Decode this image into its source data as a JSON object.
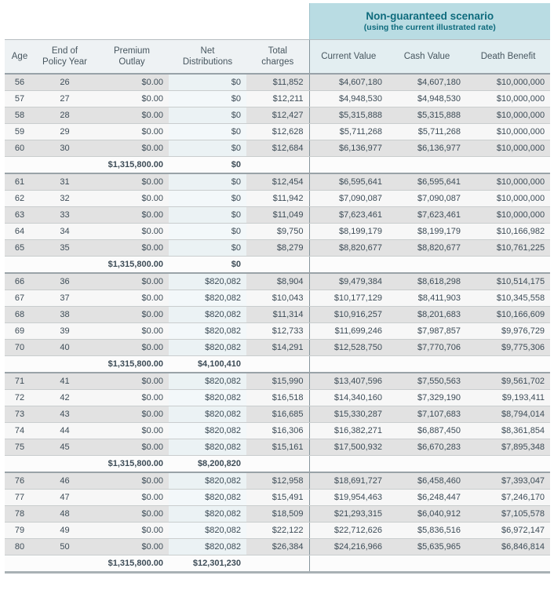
{
  "scenario_header": {
    "title": "Non-guaranteed scenario",
    "subtitle": "(using the current illustrated rate)"
  },
  "colors": {
    "scenario_bg": "#b9dce3",
    "scenario_text": "#0e6b7d",
    "row_stripe": "#e2e2e2",
    "net_distributions_tint": "#ebf2f4",
    "section_divider": "#85959c"
  },
  "table": {
    "columns": [
      "Age",
      "End of\nPolicy Year",
      "Premium\nOutlay",
      "Net\nDistributions",
      "Total\ncharges",
      "Current Value",
      "Cash Value",
      "Death Benefit"
    ],
    "blocks": [
      {
        "rows": [
          [
            "56",
            "26",
            "$0.00",
            "$0",
            "$11,852",
            "$4,607,180",
            "$4,607,180",
            "$10,000,000"
          ],
          [
            "57",
            "27",
            "$0.00",
            "$0",
            "$12,211",
            "$4,948,530",
            "$4,948,530",
            "$10,000,000"
          ],
          [
            "58",
            "28",
            "$0.00",
            "$0",
            "$12,427",
            "$5,315,888",
            "$5,315,888",
            "$10,000,000"
          ],
          [
            "59",
            "29",
            "$0.00",
            "$0",
            "$12,628",
            "$5,711,268",
            "$5,711,268",
            "$10,000,000"
          ],
          [
            "60",
            "30",
            "$0.00",
            "$0",
            "$12,684",
            "$6,136,977",
            "$6,136,977",
            "$10,000,000"
          ]
        ],
        "subtotal": {
          "premium_outlay": "$1,315,800.00",
          "net_distributions": "$0"
        }
      },
      {
        "rows": [
          [
            "61",
            "31",
            "$0.00",
            "$0",
            "$12,454",
            "$6,595,641",
            "$6,595,641",
            "$10,000,000"
          ],
          [
            "62",
            "32",
            "$0.00",
            "$0",
            "$11,942",
            "$7,090,087",
            "$7,090,087",
            "$10,000,000"
          ],
          [
            "63",
            "33",
            "$0.00",
            "$0",
            "$11,049",
            "$7,623,461",
            "$7,623,461",
            "$10,000,000"
          ],
          [
            "64",
            "34",
            "$0.00",
            "$0",
            "$9,750",
            "$8,199,179",
            "$8,199,179",
            "$10,166,982"
          ],
          [
            "65",
            "35",
            "$0.00",
            "$0",
            "$8,279",
            "$8,820,677",
            "$8,820,677",
            "$10,761,225"
          ]
        ],
        "subtotal": {
          "premium_outlay": "$1,315,800.00",
          "net_distributions": "$0"
        }
      },
      {
        "rows": [
          [
            "66",
            "36",
            "$0.00",
            "$820,082",
            "$8,904",
            "$9,479,384",
            "$8,618,298",
            "$10,514,175"
          ],
          [
            "67",
            "37",
            "$0.00",
            "$820,082",
            "$10,043",
            "$10,177,129",
            "$8,411,903",
            "$10,345,558"
          ],
          [
            "68",
            "38",
            "$0.00",
            "$820,082",
            "$11,314",
            "$10,916,257",
            "$8,201,683",
            "$10,166,609"
          ],
          [
            "69",
            "39",
            "$0.00",
            "$820,082",
            "$12,733",
            "$11,699,246",
            "$7,987,857",
            "$9,976,729"
          ],
          [
            "70",
            "40",
            "$0.00",
            "$820,082",
            "$14,291",
            "$12,528,750",
            "$7,770,706",
            "$9,775,306"
          ]
        ],
        "subtotal": {
          "premium_outlay": "$1,315,800.00",
          "net_distributions": "$4,100,410"
        }
      },
      {
        "rows": [
          [
            "71",
            "41",
            "$0.00",
            "$820,082",
            "$15,990",
            "$13,407,596",
            "$7,550,563",
            "$9,561,702"
          ],
          [
            "72",
            "42",
            "$0.00",
            "$820,082",
            "$16,518",
            "$14,340,160",
            "$7,329,190",
            "$9,193,411"
          ],
          [
            "73",
            "43",
            "$0.00",
            "$820,082",
            "$16,685",
            "$15,330,287",
            "$7,107,683",
            "$8,794,014"
          ],
          [
            "74",
            "44",
            "$0.00",
            "$820,082",
            "$16,306",
            "$16,382,271",
            "$6,887,450",
            "$8,361,854"
          ],
          [
            "75",
            "45",
            "$0.00",
            "$820,082",
            "$15,161",
            "$17,500,932",
            "$6,670,283",
            "$7,895,348"
          ]
        ],
        "subtotal": {
          "premium_outlay": "$1,315,800.00",
          "net_distributions": "$8,200,820"
        }
      },
      {
        "rows": [
          [
            "76",
            "46",
            "$0.00",
            "$820,082",
            "$12,958",
            "$18,691,727",
            "$6,458,460",
            "$7,393,047"
          ],
          [
            "77",
            "47",
            "$0.00",
            "$820,082",
            "$15,491",
            "$19,954,463",
            "$6,248,447",
            "$7,246,170"
          ],
          [
            "78",
            "48",
            "$0.00",
            "$820,082",
            "$18,509",
            "$21,293,315",
            "$6,040,912",
            "$7,105,578"
          ],
          [
            "79",
            "49",
            "$0.00",
            "$820,082",
            "$22,122",
            "$22,712,626",
            "$5,836,516",
            "$6,972,147"
          ],
          [
            "80",
            "50",
            "$0.00",
            "$820,082",
            "$26,384",
            "$24,216,966",
            "$5,635,965",
            "$6,846,814"
          ]
        ],
        "subtotal": {
          "premium_outlay": "$1,315,800.00",
          "net_distributions": "$12,301,230"
        }
      }
    ]
  }
}
